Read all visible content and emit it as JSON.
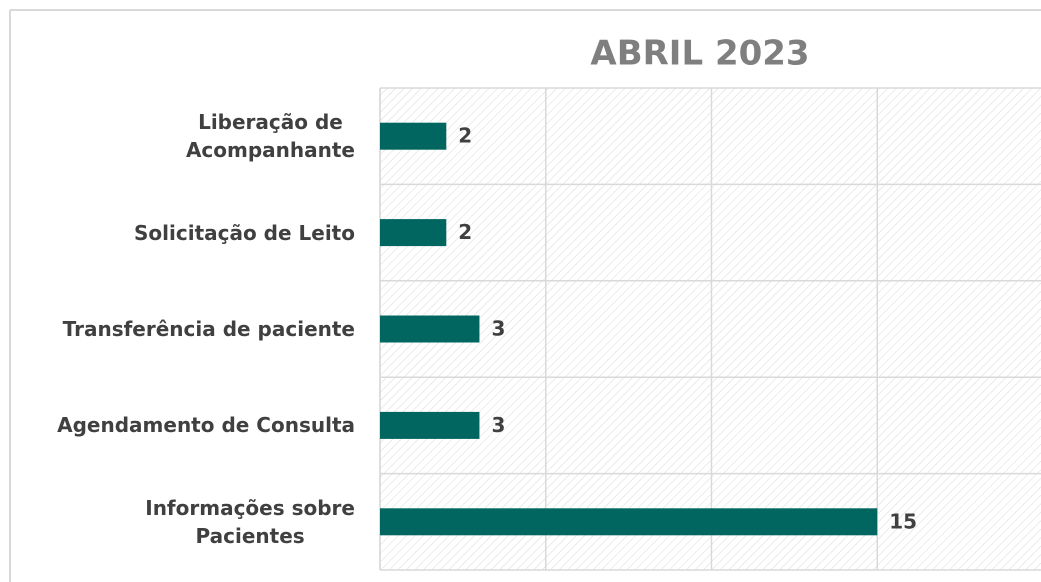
{
  "chart_data": {
    "type": "bar",
    "orientation": "horizontal",
    "title": "ABRIL 2023",
    "categories": [
      "Liberação de \nAcompanhante",
      "Solicitação de Leito",
      "Transferência de paciente",
      "Agendamento de Consulta",
      "Informações sobre\nPacientes"
    ],
    "values": [
      2,
      2,
      3,
      3,
      15
    ],
    "color": "#00665f",
    "xlim": [
      0,
      20
    ],
    "xticks": [
      0,
      5,
      10,
      15,
      20
    ],
    "grid": true
  }
}
